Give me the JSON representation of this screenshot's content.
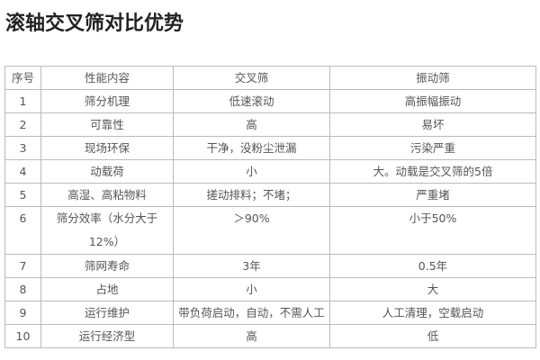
{
  "title": "滚轴交叉筛对比优势",
  "table": {
    "headers": [
      "序号",
      "性能内容",
      "交叉筛",
      "振动筛"
    ],
    "rows": [
      [
        "1",
        "筛分机理",
        "低速滚动",
        "高振幅振动"
      ],
      [
        "2",
        "可靠性",
        "高",
        "易坏"
      ],
      [
        "3",
        "现场环保",
        "干净，没粉尘泄漏",
        "污染严重"
      ],
      [
        "4",
        "动载荷",
        "小",
        "大。动载是交叉筛的5倍"
      ],
      [
        "5",
        "高湿、高粘物料",
        "搓动排料；不堵；",
        "严重堵"
      ],
      [
        "6",
        "筛分效率（水分大于12%）",
        "＞90%",
        "小于50%"
      ],
      [
        "7",
        "筛网寿命",
        "3年",
        "0.5年"
      ],
      [
        "8",
        "占地",
        "小",
        "大"
      ],
      [
        "9",
        "运行维护",
        "带负荷启动，自动，不需人工",
        "人工清理，空载启动"
      ],
      [
        "10",
        "运行经济型",
        "高",
        "低"
      ]
    ]
  }
}
